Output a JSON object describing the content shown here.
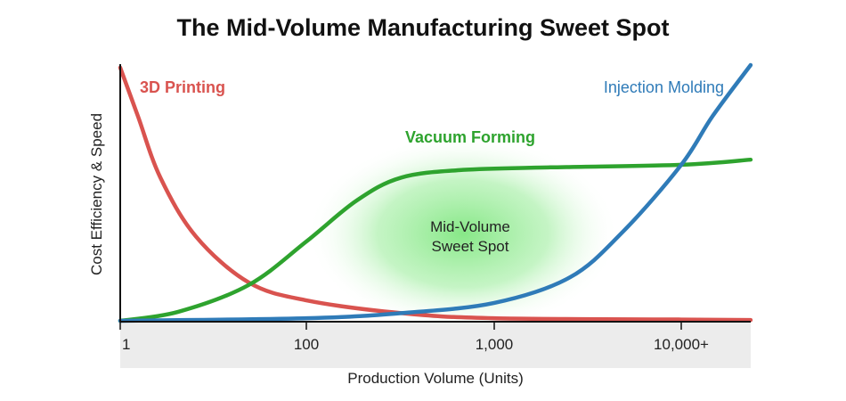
{
  "chart_data": {
    "type": "line",
    "title": "The Mid-Volume Manufacturing Sweet Spot",
    "xlabel": "Production Volume (Units)",
    "ylabel": "Cost Efficiency & Speed",
    "xscale": "log",
    "xticks": [
      1,
      100,
      1000,
      10000
    ],
    "xtick_labels": [
      "1",
      "100",
      "1,000",
      "10,000+"
    ],
    "ylim": [
      0,
      100
    ],
    "grid": false,
    "annotation": {
      "line1": "Mid-Volume",
      "line2": "Sweet Spot",
      "highlight_color": "#5fe05f"
    },
    "series": [
      {
        "name": "3D Printing",
        "color": "#d9534f",
        "x": [
          1,
          1.55,
          2.7,
          6.5,
          24,
          100,
          320,
          1000,
          10000,
          23500
        ],
        "y": [
          99,
          80,
          56,
          33,
          15,
          8,
          3,
          1,
          0.5,
          0.3
        ]
      },
      {
        "name": "Vacuum Forming",
        "color": "#2ea32e",
        "x": [
          1,
          4.2,
          24,
          100,
          185,
          320,
          680,
          2000,
          10000,
          23500
        ],
        "y": [
          0,
          3.5,
          14,
          31,
          47,
          56,
          59,
          60,
          61,
          63
        ]
      },
      {
        "name": "Injection Molding",
        "color": "#2f7bb8",
        "x": [
          1,
          100,
          320,
          1000,
          2540,
          4900,
          10000,
          14700,
          23500
        ],
        "y": [
          0,
          1,
          3,
          7,
          17,
          35,
          61,
          80,
          100
        ]
      }
    ]
  }
}
